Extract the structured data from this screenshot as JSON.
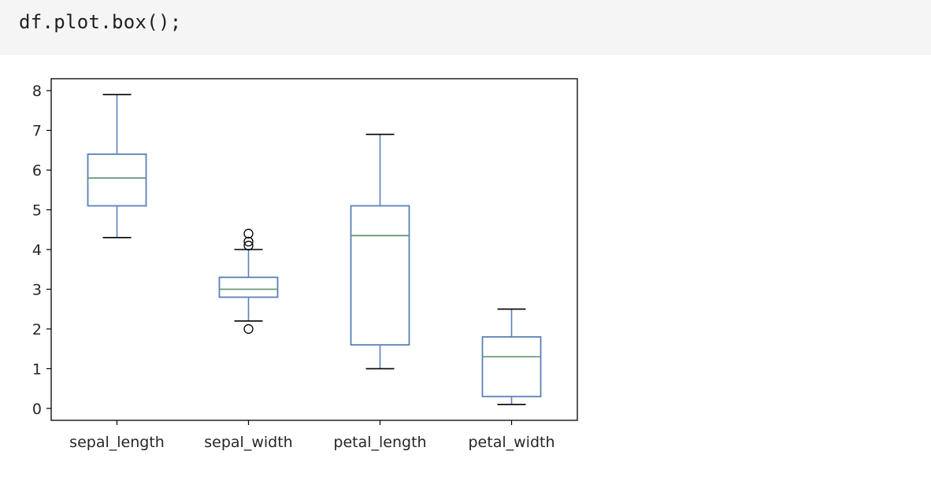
{
  "code_cell": {
    "source": "df.plot.box();"
  },
  "chart_data": {
    "type": "box",
    "title": "",
    "xlabel": "",
    "ylabel": "",
    "ylim": [
      -0.3,
      8.3
    ],
    "yticks": [
      0,
      1,
      2,
      3,
      4,
      5,
      6,
      7,
      8
    ],
    "grid": false,
    "categories": [
      "sepal_length",
      "sepal_width",
      "petal_length",
      "petal_width"
    ],
    "boxes": [
      {
        "name": "sepal_length",
        "whisker_low": 4.3,
        "q1": 5.1,
        "median": 5.8,
        "q3": 6.4,
        "whisker_high": 7.9,
        "outliers": []
      },
      {
        "name": "sepal_width",
        "whisker_low": 2.2,
        "q1": 2.8,
        "median": 3.0,
        "q3": 3.3,
        "whisker_high": 4.0,
        "outliers": [
          2.0,
          4.1,
          4.2,
          4.4
        ]
      },
      {
        "name": "petal_length",
        "whisker_low": 1.0,
        "q1": 1.6,
        "median": 4.35,
        "q3": 5.1,
        "whisker_high": 6.9,
        "outliers": []
      },
      {
        "name": "petal_width",
        "whisker_low": 0.1,
        "q1": 0.3,
        "median": 1.3,
        "q3": 1.8,
        "whisker_high": 2.5,
        "outliers": []
      }
    ],
    "colors": {
      "box": "#5a80b8",
      "median": "#6b9a78",
      "whisker_cap": "#000000",
      "flier": "#000000",
      "axes": "#000000"
    }
  }
}
